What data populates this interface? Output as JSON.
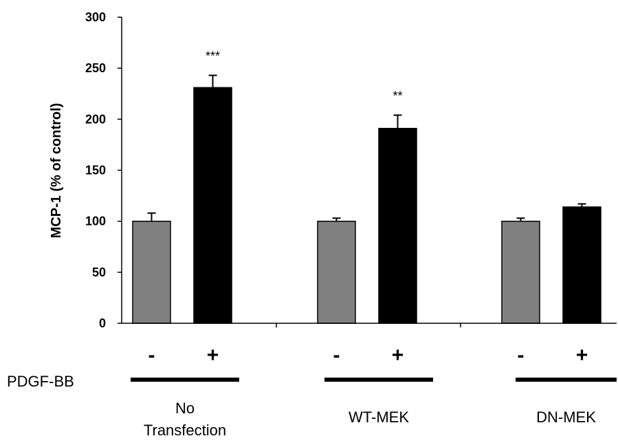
{
  "chart_data": {
    "type": "bar",
    "title": "",
    "ylabel": "MCP-1 (% of control)",
    "xlabel": "",
    "ylim": [
      0,
      300
    ],
    "yticks": [
      0,
      50,
      100,
      150,
      200,
      250,
      300
    ],
    "grid": false,
    "legend": "none",
    "treatment_label": "PDGF-BB",
    "groups": [
      {
        "label_lines": [
          "No",
          "Transfection"
        ],
        "bars": [
          {
            "sign": "-",
            "value": 100,
            "error": 8,
            "color": "#808080",
            "significance": ""
          },
          {
            "sign": "+",
            "value": 231,
            "error": 12,
            "color": "#000000",
            "significance": "***"
          }
        ]
      },
      {
        "label_lines": [
          "WT-MEK"
        ],
        "bars": [
          {
            "sign": "-",
            "value": 100,
            "error": 3,
            "color": "#808080",
            "significance": ""
          },
          {
            "sign": "+",
            "value": 191,
            "error": 13,
            "color": "#000000",
            "significance": "**"
          }
        ]
      },
      {
        "label_lines": [
          "DN-MEK"
        ],
        "bars": [
          {
            "sign": "-",
            "value": 100,
            "error": 3,
            "color": "#808080",
            "significance": ""
          },
          {
            "sign": "+",
            "value": 114,
            "error": 3,
            "color": "#000000",
            "significance": ""
          }
        ]
      }
    ]
  }
}
